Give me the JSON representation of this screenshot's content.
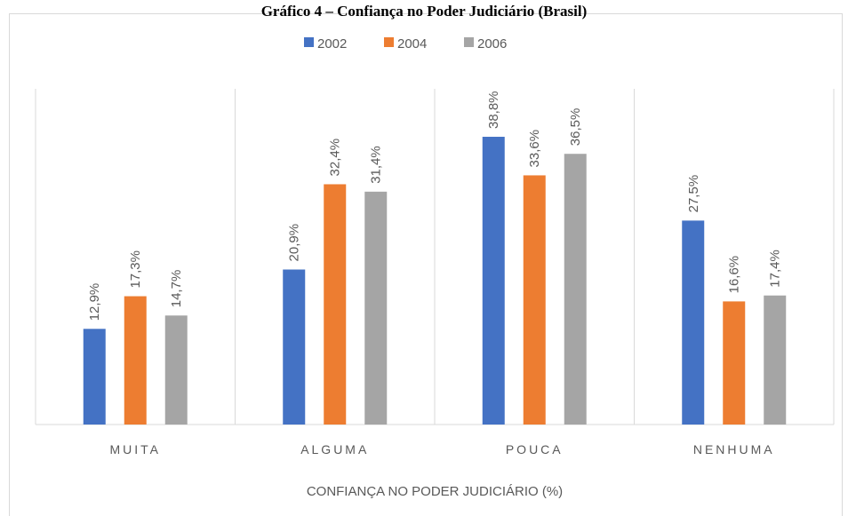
{
  "chart_data": {
    "type": "bar",
    "title": "Gráfico 4 – Confiança no Poder Judiciário (Brasil)",
    "x_label": "CONFIANÇA NO PODER JUDICIÁRIO (%)",
    "categories": [
      "MUITA",
      "ALGUMA",
      "POUCA",
      "NENHUMA"
    ],
    "series": [
      {
        "name": "2002",
        "color": "#4472c4",
        "values": [
          12.9,
          20.9,
          38.8,
          27.5
        ],
        "value_labels": [
          "12,9%",
          "20,9%",
          "38,8%",
          "27,5%"
        ]
      },
      {
        "name": "2004",
        "color": "#ed7d31",
        "values": [
          17.3,
          32.4,
          33.6,
          16.6
        ],
        "value_labels": [
          "17,3%",
          "32,4%",
          "33,6%",
          "16,6%"
        ]
      },
      {
        "name": "2006",
        "color": "#a5a5a5",
        "values": [
          14.7,
          31.4,
          36.5,
          17.4
        ],
        "value_labels": [
          "14,7%",
          "31,4%",
          "36,5%",
          "17,4%"
        ]
      }
    ],
    "legend": "top"
  }
}
